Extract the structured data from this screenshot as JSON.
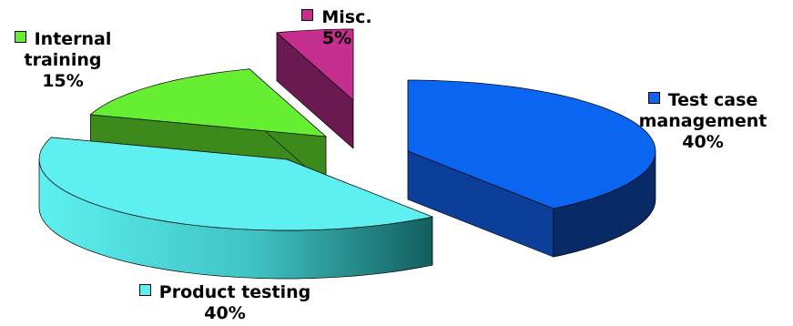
{
  "chart_data": {
    "type": "pie",
    "style": "3d-exploded",
    "legend": "labels-beside-slices",
    "slices": [
      {
        "label": "Test case management",
        "label_lines": [
          "Test case",
          "management"
        ],
        "value": 40,
        "value_label": "40%",
        "color": "#0a66f0"
      },
      {
        "label": "Product testing",
        "label_lines": [
          "Product testing"
        ],
        "value": 40,
        "value_label": "40%",
        "color": "#5ef0f0"
      },
      {
        "label": "Internal training",
        "label_lines": [
          "Internal",
          "training"
        ],
        "value": 15,
        "value_label": "15%",
        "color": "#66ee33"
      },
      {
        "label": "Misc.",
        "label_lines": [
          "Misc."
        ],
        "value": 5,
        "value_label": "5%",
        "color": "#c42f8e"
      }
    ]
  }
}
